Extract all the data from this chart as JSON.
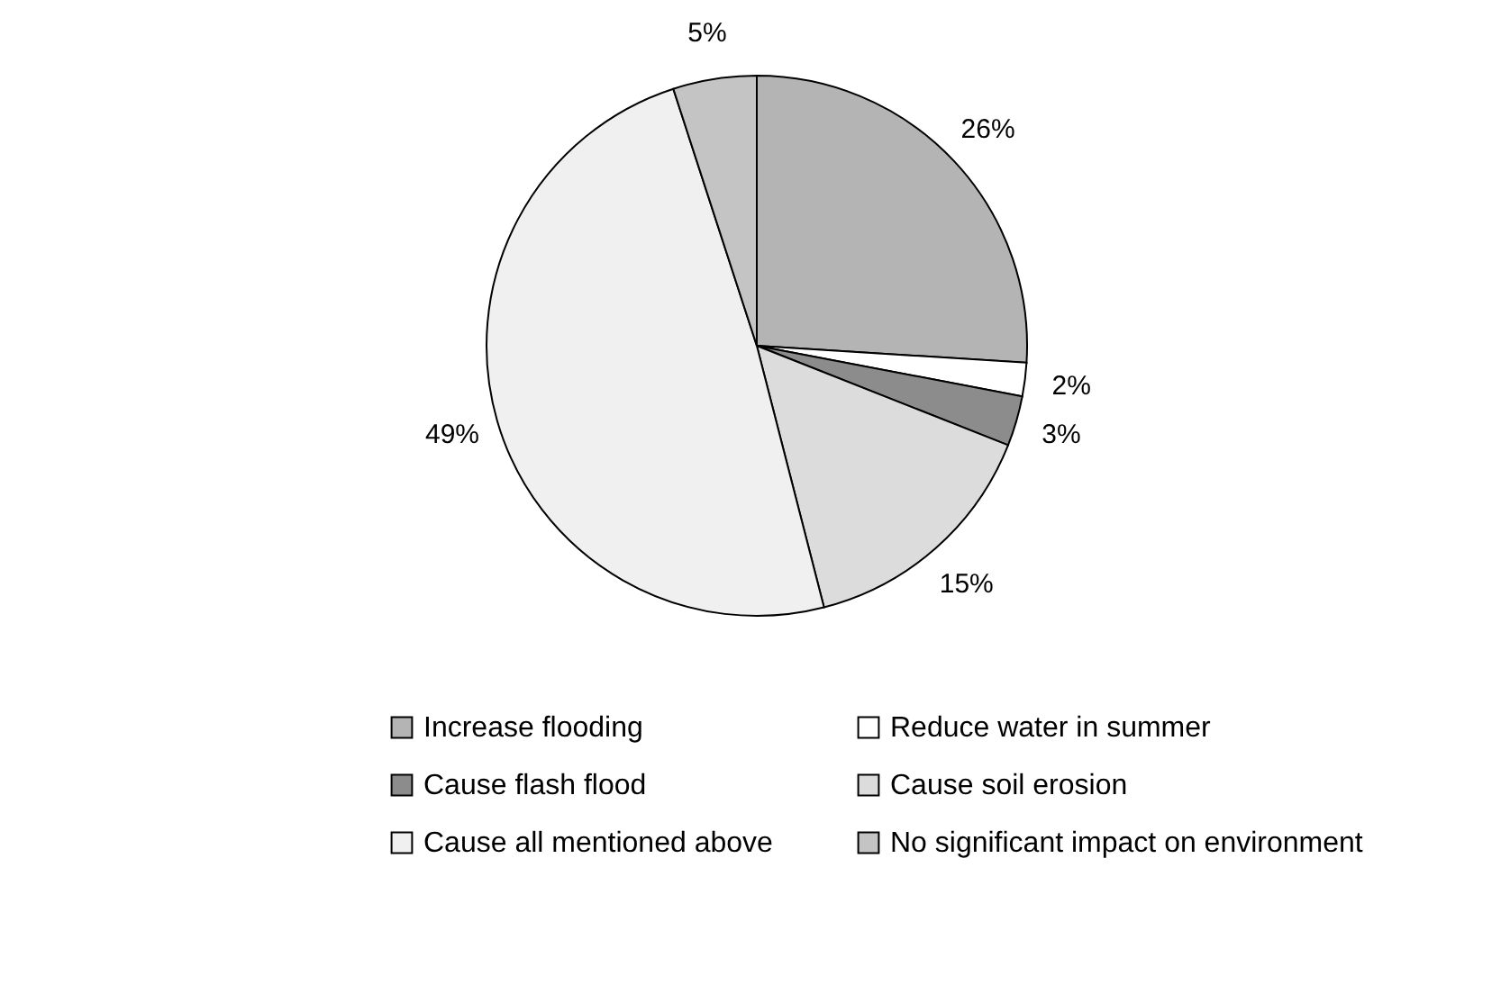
{
  "chart_data": {
    "type": "pie",
    "categories": [
      "Increase flooding",
      "Reduce water in summer",
      "Cause flash flood",
      "Cause soil erosion",
      "Cause all mentioned above",
      "No significant impact on environment"
    ],
    "values": [
      26,
      2,
      3,
      15,
      49,
      5
    ],
    "value_labels": [
      "26%",
      "2%",
      "3%",
      "15%",
      "49%",
      "5%"
    ],
    "colors": [
      "#b4b4b4",
      "#ffffff",
      "#8c8c8c",
      "#dcdcdc",
      "#f0f0f0",
      "#c4c4c4"
    ],
    "legend": "bottom"
  }
}
